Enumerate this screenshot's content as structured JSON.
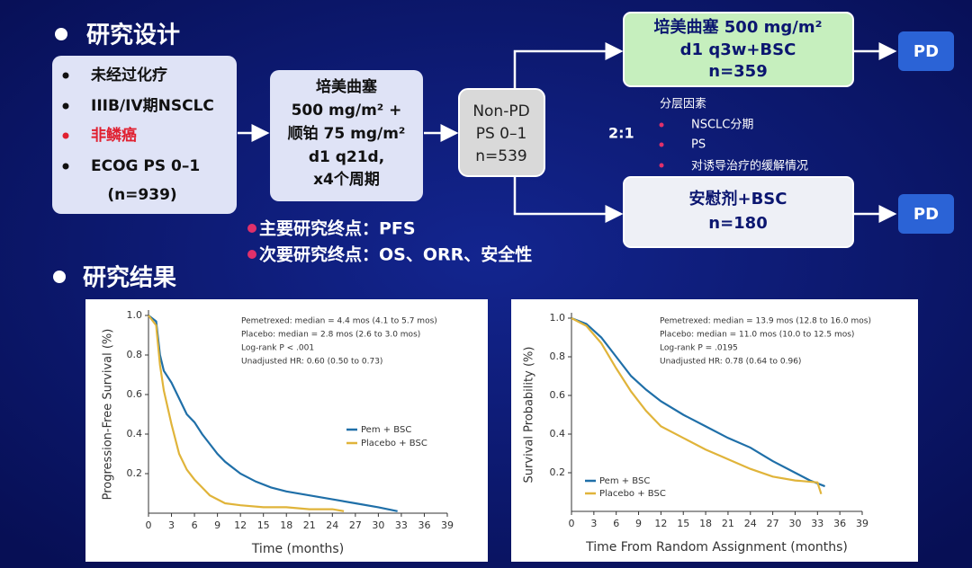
{
  "slide": {
    "section1": "研究设计",
    "eligibility": {
      "items": [
        "未经过化疗",
        "IIIB/IV期NSCLC",
        "非鳞癌",
        "ECOG PS 0–1"
      ],
      "n": "(n=939)"
    },
    "induction": [
      "培美曲塞",
      "500 mg/m² +",
      "顺铂 75 mg/m²",
      "d1 q21d,",
      "x4个周期"
    ],
    "nonpd": [
      "Non-PD",
      "PS 0–1",
      "n=539"
    ],
    "ratio": "2:1",
    "arm1": [
      "培美曲塞  500 mg/m²",
      "d1 q3w+BSC",
      "n=359"
    ],
    "arm2": [
      "安慰剂+BSC",
      "n=180"
    ],
    "pd": [
      "PD",
      "PD"
    ],
    "stratification": {
      "title": "分层因素",
      "items": [
        "NSCLC分期",
        "PS",
        "对诱导治疗的缓解情况"
      ]
    },
    "endpoints": [
      "主要研究终点：PFS",
      "次要研究终点：OS、ORR、安全性"
    ],
    "section2": "研究结果"
  },
  "chart_data": [
    {
      "type": "line",
      "xlabel": "Time (months)",
      "ylabel": "Progression-Free Survival (%)",
      "annotations": [
        "Pemetrexed: median = 4.4 mos (4.1 to 5.7 mos)",
        "Placebo: median = 2.8 mos (2.6 to 3.0 mos)",
        "Log-rank P < .001",
        "Unadjusted HR: 0.60 (0.50 to 0.73)"
      ],
      "xlim": [
        0,
        39
      ],
      "xticks": [
        0,
        3,
        6,
        9,
        12,
        15,
        18,
        21,
        24,
        27,
        30,
        33,
        36,
        39
      ],
      "ylim": [
        0,
        1
      ],
      "yticks": [
        0.2,
        0.4,
        0.6,
        0.8,
        {
          "value": 1,
          "label": "1.0"
        }
      ],
      "series": [
        {
          "name": "Pem + BSC",
          "color": "#1f6fa8",
          "x": [
            0,
            1,
            1.5,
            2,
            3,
            4,
            5,
            6,
            7,
            8,
            9,
            10,
            12,
            14,
            16,
            18,
            21,
            24,
            27,
            30,
            32.5
          ],
          "values": [
            1,
            0.97,
            0.8,
            0.72,
            0.66,
            0.58,
            0.5,
            0.46,
            0.4,
            0.35,
            0.3,
            0.26,
            0.2,
            0.16,
            0.13,
            0.11,
            0.09,
            0.07,
            0.05,
            0.03,
            0.01
          ]
        },
        {
          "name": "Placebo + BSC",
          "color": "#e0b43a",
          "x": [
            0,
            1,
            1.5,
            2,
            3,
            4,
            5,
            6,
            7,
            8,
            9,
            10,
            12,
            15,
            18,
            21,
            24,
            25.5
          ],
          "values": [
            1,
            0.95,
            0.75,
            0.62,
            0.45,
            0.3,
            0.22,
            0.17,
            0.13,
            0.09,
            0.07,
            0.05,
            0.04,
            0.03,
            0.03,
            0.02,
            0.02,
            0.01
          ]
        }
      ]
    },
    {
      "type": "line",
      "xlabel": "Time From Random Assignment (months)",
      "ylabel": "Survival Probability (%)",
      "annotations": [
        "Pemetrexed: median = 13.9 mos (12.8 to 16.0 mos)",
        "Placebo: median = 11.0 mos (10.0 to 12.5 mos)",
        "Log-rank P = .0195",
        "Unadjusted HR: 0.78 (0.64 to 0.96)"
      ],
      "xlim": [
        0,
        39
      ],
      "xticks": [
        0,
        3,
        6,
        9,
        12,
        15,
        18,
        21,
        24,
        27,
        30,
        33,
        36,
        39
      ],
      "ylim": [
        0,
        1
      ],
      "yticks": [
        0.2,
        0.4,
        0.6,
        0.8,
        {
          "value": 1,
          "label": "1.0"
        }
      ],
      "series": [
        {
          "name": "Pem + BSC",
          "color": "#1f6fa8",
          "x": [
            0,
            2,
            4,
            6,
            8,
            10,
            12,
            15,
            18,
            21,
            24,
            27,
            30,
            32,
            34
          ],
          "values": [
            1,
            0.97,
            0.9,
            0.8,
            0.7,
            0.63,
            0.57,
            0.5,
            0.44,
            0.38,
            0.33,
            0.26,
            0.2,
            0.16,
            0.13
          ]
        },
        {
          "name": "Placebo + BSC",
          "color": "#e0b43a",
          "x": [
            0,
            2,
            4,
            6,
            8,
            10,
            12,
            15,
            18,
            21,
            24,
            27,
            30,
            33,
            33.5
          ],
          "values": [
            1,
            0.96,
            0.87,
            0.74,
            0.62,
            0.52,
            0.44,
            0.38,
            0.32,
            0.27,
            0.22,
            0.18,
            0.16,
            0.15,
            0.09
          ]
        }
      ]
    }
  ]
}
